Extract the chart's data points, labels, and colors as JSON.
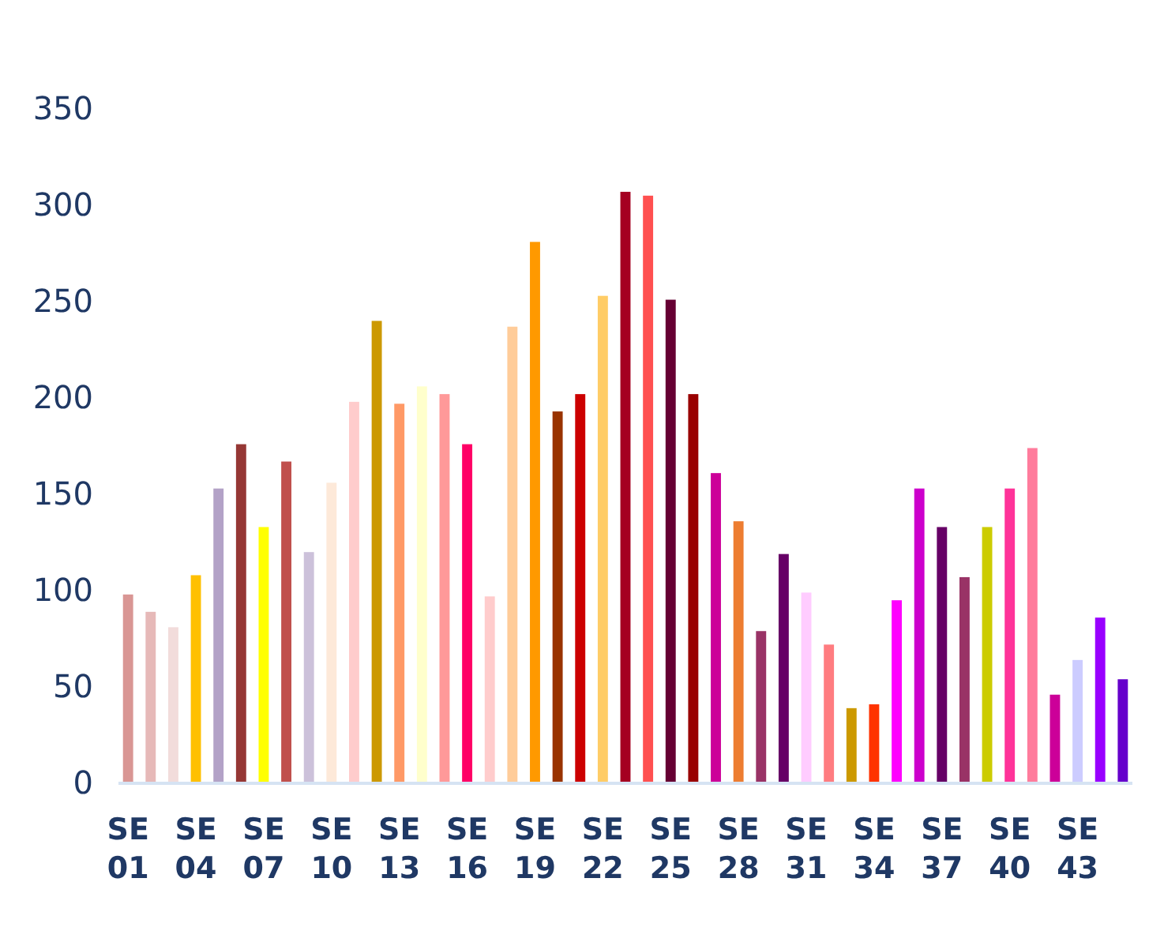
{
  "chart_data": {
    "type": "bar",
    "categories": [
      "SE 01",
      null,
      null,
      "SE 04",
      null,
      null,
      "SE 07",
      null,
      null,
      "SE 10",
      null,
      null,
      "SE 13",
      null,
      null,
      "SE 16",
      null,
      null,
      "SE 19",
      null,
      null,
      "SE 22",
      null,
      null,
      "SE 25",
      null,
      null,
      "SE 28",
      null,
      null,
      "SE 31",
      null,
      null,
      "SE 34",
      null,
      null,
      "SE 37",
      null,
      null,
      "SE 40",
      null,
      null,
      "SE 43",
      null,
      null
    ],
    "values": [
      98,
      89,
      81,
      108,
      153,
      176,
      133,
      167,
      120,
      156,
      198,
      240,
      197,
      206,
      202,
      176,
      97,
      237,
      281,
      193,
      202,
      253,
      307,
      305,
      251,
      202,
      161,
      136,
      79,
      119,
      99,
      72,
      39,
      41,
      95,
      153,
      133,
      107,
      133,
      153,
      174,
      46,
      64,
      86,
      54
    ],
    "colors": [
      "#d99694",
      "#e6b9b8",
      "#f2dcdb",
      "#ffc000",
      "#b3a2c7",
      "#953735",
      "#ffff00",
      "#c0504d",
      "#ccc1da",
      "#fde9d9",
      "#ffcccc",
      "#cc9900",
      "#ff9966",
      "#ffffcc",
      "#ff9999",
      "#ff0066",
      "#ffcccc",
      "#ffcc99",
      "#ff9900",
      "#993300",
      "#cc0000",
      "#ffcc66",
      "#a50021",
      "#ff5050",
      "#660033",
      "#990000",
      "#cc0099",
      "#ed7d31",
      "#993366",
      "#660066",
      "#ffccff",
      "#ff7c80",
      "#cc9900",
      "#ff3300",
      "#ff00ff",
      "#cc00cc",
      "#660066",
      "#993366",
      "#cccc00",
      "#ff3399",
      "#ff7c9c",
      "#cc0099",
      "#ccccff",
      "#9900ff",
      "#6600cc"
    ],
    "ylim": [
      0,
      350
    ],
    "yticks": [
      0,
      50,
      100,
      150,
      200,
      250,
      300,
      350
    ],
    "grid": false
  }
}
